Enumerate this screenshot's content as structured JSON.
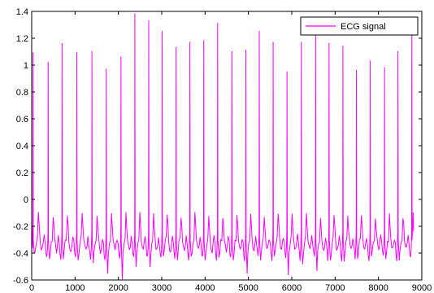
{
  "chart_data": {
    "type": "line",
    "title": "",
    "xlabel": "",
    "ylabel": "",
    "xlim": [
      0,
      9000
    ],
    "ylim": [
      -0.6,
      1.4
    ],
    "x_ticks": [
      0,
      1000,
      2000,
      3000,
      4000,
      5000,
      6000,
      7000,
      8000,
      9000
    ],
    "y_ticks": [
      -0.6,
      -0.4,
      -0.2,
      0,
      0.2,
      0.4,
      0.6,
      0.8,
      1,
      1.2,
      1.4
    ],
    "x_tick_labels": [
      "0",
      "1000",
      "2000",
      "3000",
      "4000",
      "5000",
      "6000",
      "7000",
      "8000",
      "9000"
    ],
    "y_tick_labels": [
      "-0.6",
      "-0.4",
      "-0.2",
      "0",
      "0.2",
      "0.4",
      "0.6",
      "0.8",
      "1",
      "1.2",
      "1.4"
    ],
    "grid": false,
    "legend_position": "top-right",
    "series": [
      {
        "name": "ECG signal",
        "color": "#ff00ff",
        "x_end": 8800,
        "baseline": -0.32,
        "r_peaks": [
          {
            "x": 30,
            "y": 1.09
          },
          {
            "x": 380,
            "y": 1.02
          },
          {
            "x": 700,
            "y": 1.16
          },
          {
            "x": 1040,
            "y": 1.09
          },
          {
            "x": 1390,
            "y": 1.1
          },
          {
            "x": 1720,
            "y": 0.97
          },
          {
            "x": 2060,
            "y": 1.06
          },
          {
            "x": 2380,
            "y": 1.38
          },
          {
            "x": 2700,
            "y": 1.33
          },
          {
            "x": 3010,
            "y": 1.25
          },
          {
            "x": 3330,
            "y": 1.13
          },
          {
            "x": 3650,
            "y": 1.17
          },
          {
            "x": 3970,
            "y": 1.18
          },
          {
            "x": 4290,
            "y": 1.31
          },
          {
            "x": 4620,
            "y": 1.1
          },
          {
            "x": 4940,
            "y": 1.11
          },
          {
            "x": 5250,
            "y": 1.25
          },
          {
            "x": 5570,
            "y": 1.17
          },
          {
            "x": 5890,
            "y": 0.95
          },
          {
            "x": 6220,
            "y": 1.17
          },
          {
            "x": 6550,
            "y": 1.28
          },
          {
            "x": 6860,
            "y": 1.16
          },
          {
            "x": 7180,
            "y": 1.14
          },
          {
            "x": 7490,
            "y": 0.96
          },
          {
            "x": 7810,
            "y": 1.03
          },
          {
            "x": 8140,
            "y": 0.98
          },
          {
            "x": 8450,
            "y": 1.1
          },
          {
            "x": 8770,
            "y": 1.29
          }
        ],
        "s_troughs": [
          {
            "x": 60,
            "y": -0.4
          },
          {
            "x": 410,
            "y": -0.44
          },
          {
            "x": 730,
            "y": -0.44
          },
          {
            "x": 1070,
            "y": -0.45
          },
          {
            "x": 1420,
            "y": -0.47
          },
          {
            "x": 1750,
            "y": -0.55
          },
          {
            "x": 2090,
            "y": -0.6
          },
          {
            "x": 2410,
            "y": -0.5
          },
          {
            "x": 2730,
            "y": -0.5
          },
          {
            "x": 3040,
            "y": -0.42
          },
          {
            "x": 3360,
            "y": -0.45
          },
          {
            "x": 3680,
            "y": -0.42
          },
          {
            "x": 4000,
            "y": -0.45
          },
          {
            "x": 4320,
            "y": -0.43
          },
          {
            "x": 4650,
            "y": -0.45
          },
          {
            "x": 4970,
            "y": -0.55
          },
          {
            "x": 5280,
            "y": -0.45
          },
          {
            "x": 5600,
            "y": -0.42
          },
          {
            "x": 5920,
            "y": -0.56
          },
          {
            "x": 6250,
            "y": -0.48
          },
          {
            "x": 6580,
            "y": -0.53
          },
          {
            "x": 6890,
            "y": -0.45
          },
          {
            "x": 7210,
            "y": -0.46
          },
          {
            "x": 7520,
            "y": -0.44
          },
          {
            "x": 7840,
            "y": -0.42
          },
          {
            "x": 8170,
            "y": -0.44
          },
          {
            "x": 8480,
            "y": -0.45
          },
          {
            "x": 8800,
            "y": -0.1
          }
        ]
      }
    ]
  },
  "legend": {
    "label": "ECG signal"
  }
}
